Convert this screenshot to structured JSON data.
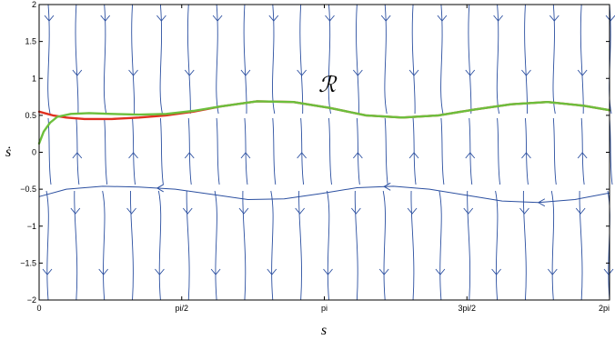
{
  "chart_data": {
    "type": "line",
    "title": "",
    "xlabel": "s",
    "ylabel": "ṡ",
    "xlim": [
      0,
      6.2832
    ],
    "ylim": [
      -2,
      2
    ],
    "xticks": [
      {
        "value": 0,
        "label": "0"
      },
      {
        "value": 1.5708,
        "label": "pi/2"
      },
      {
        "value": 3.1416,
        "label": "pi"
      },
      {
        "value": 4.7124,
        "label": "3pi/2"
      },
      {
        "value": 6.2832,
        "label": "2pi"
      }
    ],
    "yticks": [
      {
        "value": -2,
        "label": "−2"
      },
      {
        "value": -1.5,
        "label": "−1.5"
      },
      {
        "value": -1,
        "label": "−1"
      },
      {
        "value": -0.5,
        "label": "−0.5"
      },
      {
        "value": 0,
        "label": "0"
      },
      {
        "value": 0.5,
        "label": "0.5"
      },
      {
        "value": 1,
        "label": "1"
      },
      {
        "value": 1.5,
        "label": "1.5"
      },
      {
        "value": 2,
        "label": "2"
      }
    ],
    "annotation": "ℛ",
    "grid": false,
    "colors": {
      "field": "#2b4fa0",
      "orbit_red": "#e03020",
      "orbit_green": "#6cbf3c"
    },
    "series": [
      {
        "color": "#e03020",
        "x": [
          0,
          0.15,
          0.3,
          0.5,
          0.8,
          1.1,
          1.4,
          1.7,
          2.0,
          2.4,
          2.8,
          3.2,
          3.6,
          4.0,
          4.4,
          4.8,
          5.2,
          5.6,
          6.0,
          6.2832
        ],
        "y": [
          0.55,
          0.5,
          0.47,
          0.45,
          0.45,
          0.47,
          0.5,
          0.55,
          0.62,
          0.69,
          0.68,
          0.6,
          0.5,
          0.47,
          0.5,
          0.58,
          0.65,
          0.68,
          0.63,
          0.57
        ]
      },
      {
        "color": "#6cbf3c",
        "x": [
          0,
          0.05,
          0.12,
          0.2,
          0.35,
          0.55,
          0.8,
          1.1,
          1.4,
          1.7,
          2.0,
          2.4,
          2.8,
          3.2,
          3.6,
          4.0,
          4.4,
          4.8,
          5.2,
          5.6,
          6.0,
          6.2832
        ],
        "y": [
          0.12,
          0.28,
          0.4,
          0.48,
          0.52,
          0.53,
          0.52,
          0.51,
          0.52,
          0.56,
          0.62,
          0.69,
          0.68,
          0.6,
          0.5,
          0.47,
          0.5,
          0.58,
          0.65,
          0.68,
          0.63,
          0.57
        ]
      },
      {
        "color": "#2b4fa0",
        "x": [
          0,
          0.3,
          0.7,
          1.1,
          1.5,
          1.9,
          2.3,
          2.7,
          3.1,
          3.5,
          3.9,
          4.3,
          4.7,
          5.1,
          5.5,
          5.9,
          6.2832
        ],
        "y": [
          -0.6,
          -0.5,
          -0.46,
          -0.47,
          -0.5,
          -0.57,
          -0.64,
          -0.63,
          -0.56,
          -0.48,
          -0.46,
          -0.5,
          -0.58,
          -0.66,
          -0.68,
          -0.64,
          -0.55
        ]
      }
    ]
  }
}
